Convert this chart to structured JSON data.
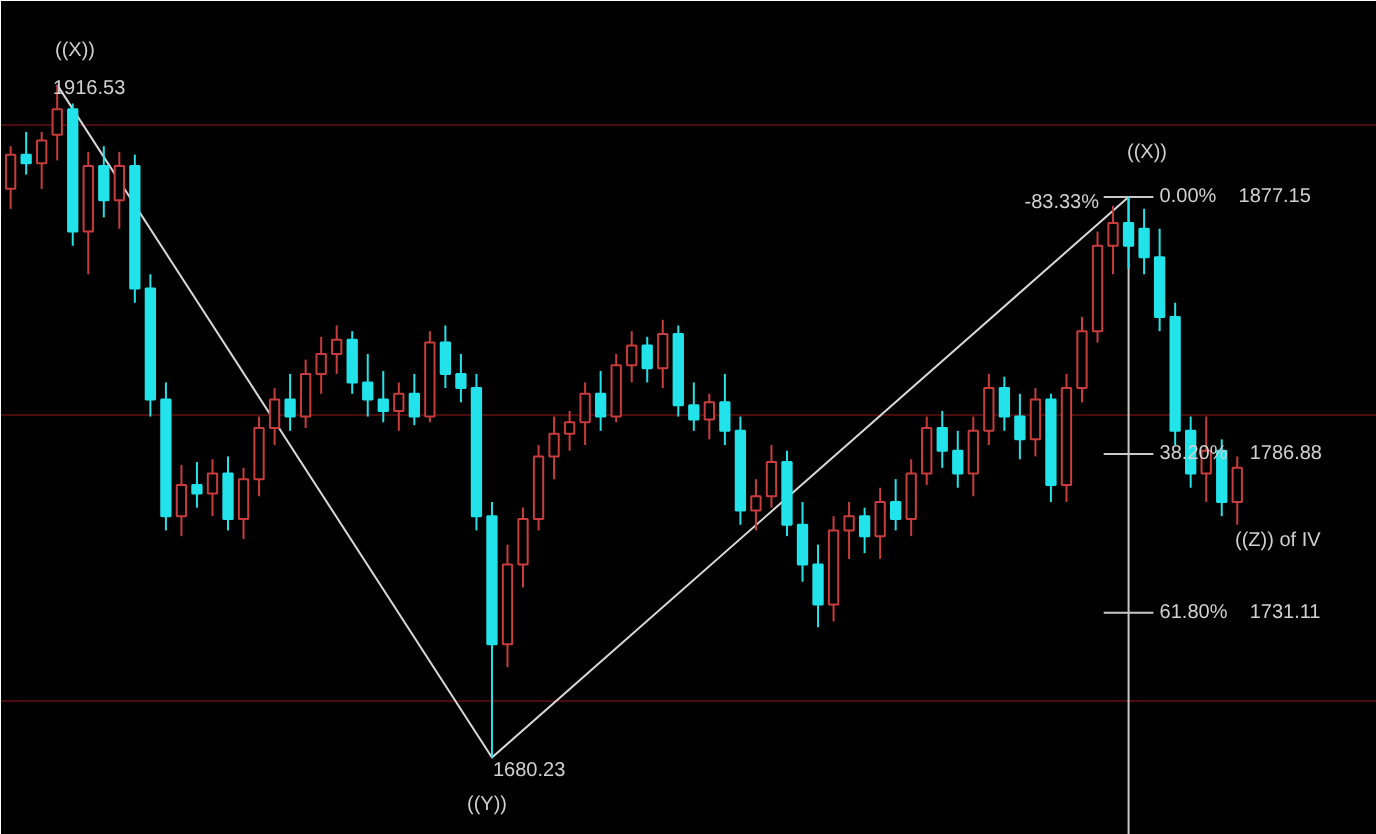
{
  "chart_data": {
    "type": "candlestick",
    "categories": [
      null,
      null,
      null,
      null,
      null,
      null,
      null,
      null,
      null,
      null,
      null,
      null,
      null,
      null,
      null,
      null,
      null,
      null,
      null,
      null,
      null,
      null,
      null,
      null,
      null,
      null,
      null,
      null,
      null,
      null,
      null,
      null,
      null,
      null,
      null,
      null,
      null,
      null,
      null,
      null,
      null,
      null,
      null,
      null,
      null,
      null,
      null,
      null,
      null,
      null,
      null,
      null,
      null,
      null,
      null,
      null,
      null,
      null,
      null,
      null,
      null,
      null,
      null,
      null,
      null,
      null,
      null,
      null,
      null,
      null,
      null,
      null,
      null,
      null,
      null,
      null,
      null,
      null,
      null,
      null
    ],
    "ohlc": [
      [
        1880,
        1895,
        1873,
        1892
      ],
      [
        1892,
        1900,
        1885,
        1889
      ],
      [
        1889,
        1900,
        1880,
        1897
      ],
      [
        1899,
        1916.53,
        1890,
        1908
      ],
      [
        1908,
        1910,
        1860,
        1865
      ],
      [
        1865,
        1893,
        1850,
        1888
      ],
      [
        1888,
        1895,
        1870,
        1876
      ],
      [
        1876,
        1893,
        1866,
        1888
      ],
      [
        1888,
        1892,
        1840,
        1845
      ],
      [
        1845,
        1850,
        1800,
        1806
      ],
      [
        1806,
        1812,
        1760,
        1765
      ],
      [
        1765,
        1783,
        1758,
        1776
      ],
      [
        1776,
        1784,
        1768,
        1773
      ],
      [
        1773,
        1785,
        1765,
        1780
      ],
      [
        1780,
        1786,
        1760,
        1764
      ],
      [
        1764,
        1782,
        1757,
        1778
      ],
      [
        1778,
        1800,
        1772,
        1796
      ],
      [
        1796,
        1810,
        1790,
        1806
      ],
      [
        1806,
        1815,
        1795,
        1800
      ],
      [
        1800,
        1820,
        1796,
        1815
      ],
      [
        1815,
        1828,
        1808,
        1822
      ],
      [
        1822,
        1832,
        1815,
        1827
      ],
      [
        1827,
        1830,
        1808,
        1812
      ],
      [
        1812,
        1822,
        1800,
        1806
      ],
      [
        1806,
        1816,
        1798,
        1802
      ],
      [
        1802,
        1812,
        1795,
        1808
      ],
      [
        1808,
        1815,
        1797,
        1800
      ],
      [
        1800,
        1830,
        1798,
        1826
      ],
      [
        1826,
        1832,
        1810,
        1815
      ],
      [
        1815,
        1822,
        1805,
        1810
      ],
      [
        1810,
        1815,
        1760,
        1765
      ],
      [
        1765,
        1770,
        1680.23,
        1720
      ],
      [
        1720,
        1755,
        1712,
        1748
      ],
      [
        1748,
        1768,
        1740,
        1764
      ],
      [
        1764,
        1790,
        1760,
        1786
      ],
      [
        1786,
        1800,
        1778,
        1794
      ],
      [
        1794,
        1802,
        1788,
        1798
      ],
      [
        1798,
        1812,
        1790,
        1808
      ],
      [
        1808,
        1816,
        1795,
        1800
      ],
      [
        1800,
        1822,
        1798,
        1818
      ],
      [
        1818,
        1830,
        1812,
        1825
      ],
      [
        1825,
        1828,
        1812,
        1817
      ],
      [
        1817,
        1834,
        1810,
        1829
      ],
      [
        1829,
        1832,
        1800,
        1804
      ],
      [
        1804,
        1812,
        1795,
        1799
      ],
      [
        1799,
        1808,
        1792,
        1805
      ],
      [
        1805,
        1815,
        1790,
        1795
      ],
      [
        1795,
        1800,
        1762,
        1767
      ],
      [
        1767,
        1778,
        1760,
        1772
      ],
      [
        1772,
        1790,
        1768,
        1784
      ],
      [
        1784,
        1788,
        1758,
        1762
      ],
      [
        1762,
        1770,
        1742,
        1748
      ],
      [
        1748,
        1755,
        1726,
        1734
      ],
      [
        1734,
        1765,
        1728,
        1760
      ],
      [
        1760,
        1770,
        1750,
        1765
      ],
      [
        1765,
        1768,
        1752,
        1758
      ],
      [
        1758,
        1775,
        1750,
        1770
      ],
      [
        1770,
        1778,
        1760,
        1764
      ],
      [
        1764,
        1785,
        1758,
        1780
      ],
      [
        1780,
        1800,
        1776,
        1796
      ],
      [
        1796,
        1802,
        1782,
        1788
      ],
      [
        1788,
        1795,
        1775,
        1780
      ],
      [
        1780,
        1800,
        1772,
        1795
      ],
      [
        1795,
        1815,
        1790,
        1810
      ],
      [
        1810,
        1814,
        1795,
        1800
      ],
      [
        1800,
        1808,
        1785,
        1792
      ],
      [
        1792,
        1810,
        1786,
        1806
      ],
      [
        1806,
        1808,
        1770,
        1776
      ],
      [
        1776,
        1815,
        1770,
        1810
      ],
      [
        1810,
        1835,
        1805,
        1830
      ],
      [
        1830,
        1865,
        1826,
        1860
      ],
      [
        1860,
        1874,
        1850,
        1868
      ],
      [
        1868,
        1877.15,
        1852,
        1860
      ],
      [
        1866,
        1873,
        1850,
        1856
      ],
      [
        1856,
        1866,
        1830,
        1835
      ],
      [
        1835,
        1840,
        1790,
        1795
      ],
      [
        1795,
        1800,
        1775,
        1780
      ],
      [
        1780,
        1800,
        1770,
        1788
      ],
      [
        1788,
        1792,
        1765,
        1770
      ],
      [
        1770,
        1786,
        1762,
        1782
      ]
    ],
    "colors": [
      "#c83c3c",
      "#22e3ea",
      "#c83c3c",
      "#c83c3c",
      "#22e3ea",
      "#c83c3c",
      "#22e3ea",
      "#c83c3c",
      "#22e3ea",
      "#22e3ea",
      "#22e3ea",
      "#c83c3c",
      "#22e3ea",
      "#c83c3c",
      "#22e3ea",
      "#c83c3c",
      "#c83c3c",
      "#c83c3c",
      "#22e3ea",
      "#c83c3c",
      "#c83c3c",
      "#c83c3c",
      "#22e3ea",
      "#22e3ea",
      "#22e3ea",
      "#c83c3c",
      "#22e3ea",
      "#c83c3c",
      "#22e3ea",
      "#22e3ea",
      "#22e3ea",
      "#22e3ea",
      "#c83c3c",
      "#c83c3c",
      "#c83c3c",
      "#c83c3c",
      "#c83c3c",
      "#c83c3c",
      "#22e3ea",
      "#c83c3c",
      "#c83c3c",
      "#22e3ea",
      "#c83c3c",
      "#22e3ea",
      "#22e3ea",
      "#c83c3c",
      "#22e3ea",
      "#22e3ea",
      "#c83c3c",
      "#c83c3c",
      "#22e3ea",
      "#22e3ea",
      "#22e3ea",
      "#c83c3c",
      "#c83c3c",
      "#22e3ea",
      "#c83c3c",
      "#22e3ea",
      "#c83c3c",
      "#c83c3c",
      "#22e3ea",
      "#22e3ea",
      "#c83c3c",
      "#c83c3c",
      "#22e3ea",
      "#22e3ea",
      "#c83c3c",
      "#22e3ea",
      "#c83c3c",
      "#c83c3c",
      "#c83c3c",
      "#c83c3c",
      "#22e3ea",
      "#22e3ea",
      "#22e3ea",
      "#22e3ea",
      "#22e3ea",
      "#c83c3c",
      "#22e3ea",
      "#c83c3c"
    ],
    "ylim": [
      1653,
      1946
    ],
    "tick_labels": false,
    "grid": "y",
    "yticks": [
      {
        "value": 1902.5,
        "label": null
      },
      {
        "value": 1800.5,
        "label": null
      },
      {
        "value": 1700,
        "label": null
      }
    ],
    "series": [
      {
        "type": "line",
        "color": "#d8d8d8",
        "values": [
          null,
          null,
          null,
          1916.53,
          null,
          null,
          null,
          null,
          null,
          null,
          null,
          null,
          null,
          null,
          null,
          null,
          null,
          null,
          null,
          null,
          null,
          null,
          null,
          null,
          null,
          null,
          null,
          null,
          null,
          null,
          null,
          1680.23,
          null,
          null,
          null,
          null,
          null,
          null,
          null,
          null,
          null,
          null,
          null,
          null,
          null,
          null,
          null,
          null,
          null,
          null,
          null,
          null,
          null,
          null,
          null,
          null,
          null,
          null,
          null,
          null,
          null,
          null,
          null,
          null,
          null,
          null,
          null,
          null,
          null,
          null,
          null,
          null,
          1877.15,
          null,
          null,
          null,
          null,
          null,
          null,
          null
        ]
      }
    ],
    "ref_lines": [
      {
        "axis": "y",
        "value": 1877.15,
        "label": "0.00%    1877.15",
        "color": "#c8c8c8"
      },
      {
        "axis": "y",
        "value": 1786.88,
        "label": "38.20%    1786.88",
        "color": "#c8c8c8"
      },
      {
        "axis": "y",
        "value": 1731.11,
        "label": "61.80%    1731.11",
        "color": "#c8c8c8"
      }
    ],
    "annotations": [
      "((X))",
      "1916.53",
      "1680.23",
      "((Y))",
      "((X))",
      "-83.33%",
      "((Z)) of IV"
    ]
  }
}
